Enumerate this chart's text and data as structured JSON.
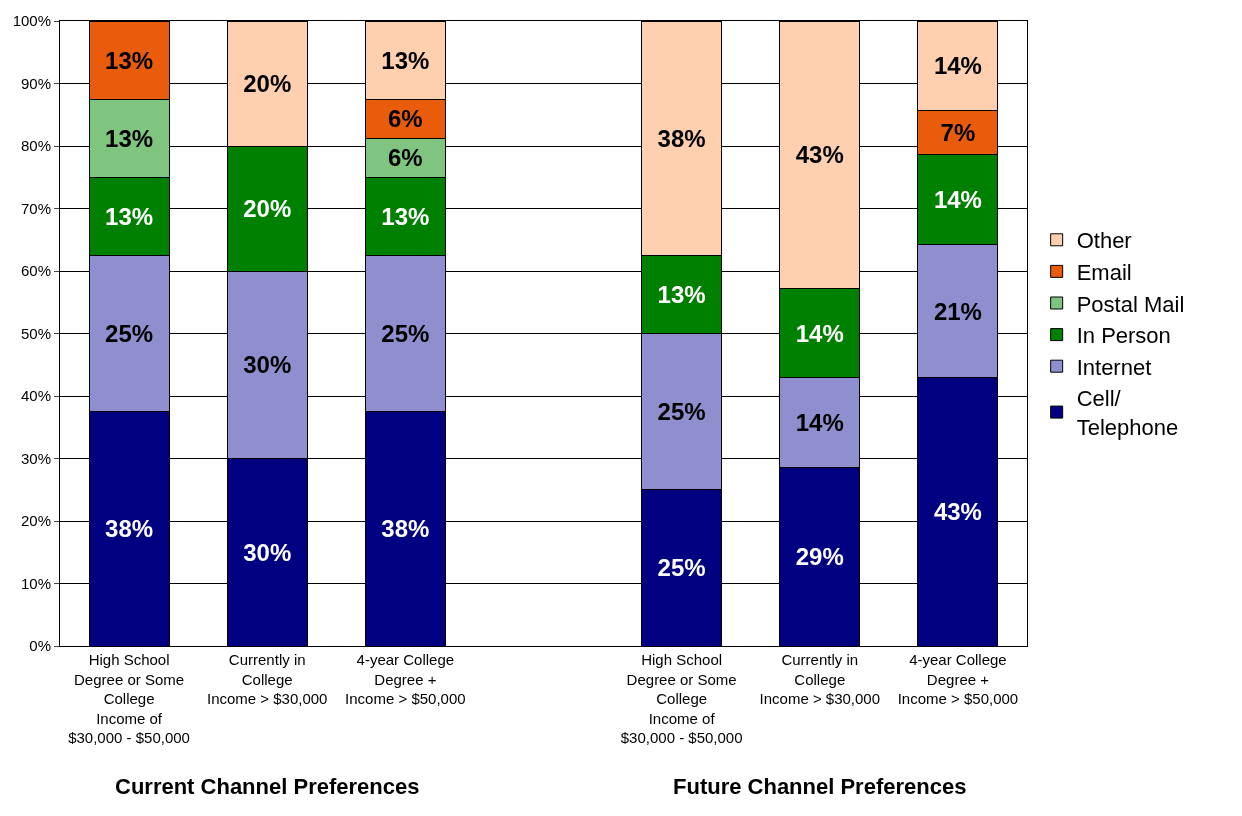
{
  "chart_data": {
    "type": "bar",
    "stacked": true,
    "categories": [
      "High School\nDegree or Some\nCollege\nIncome of\n$30,000 - $50,000",
      "Currently in\nCollege\nIncome > $30,000",
      "4-year College\nDegree +\nIncome > $50,000",
      null,
      "High School\nDegree or Some\nCollege\nIncome of\n$30,000 - $50,000",
      "Currently in\nCollege\nIncome > $30,000",
      "4-year College\nDegree +\nIncome > $50,000"
    ],
    "series": [
      {
        "name": "Cell/\nTelephone",
        "color": "#000080",
        "values": [
          37.5,
          30,
          37.5,
          null,
          25,
          28.6,
          42.9
        ],
        "value_labels": [
          "38%",
          "30%",
          "38%",
          null,
          "25%",
          "29%",
          "43%"
        ]
      },
      {
        "name": "Internet",
        "color": "#8f8fd0",
        "values": [
          25,
          30,
          25,
          null,
          25,
          14.3,
          21.4
        ],
        "value_labels": [
          "25%",
          "30%",
          "25%",
          null,
          "25%",
          "14%",
          "21%"
        ]
      },
      {
        "name": "In Person",
        "color": "#008000",
        "values": [
          12.5,
          20,
          12.5,
          null,
          12.5,
          14.3,
          14.3
        ],
        "value_labels": [
          "13%",
          "20%",
          "13%",
          null,
          "13%",
          "14%",
          "14%"
        ]
      },
      {
        "name": "Postal Mail",
        "color": "#7fc47f",
        "values": [
          12.5,
          null,
          6.25,
          null,
          null,
          null,
          null
        ],
        "value_labels": [
          "13%",
          null,
          "6%",
          null,
          null,
          null,
          null
        ]
      },
      {
        "name": "Email",
        "color": "#e85c0c",
        "values": [
          12.5,
          null,
          6.25,
          null,
          null,
          null,
          7.1
        ],
        "value_labels": [
          "13%",
          null,
          "6%",
          null,
          null,
          null,
          "7%"
        ]
      },
      {
        "name": "Other",
        "color": "#ffd0b0",
        "values": [
          null,
          20,
          12.5,
          null,
          37.5,
          42.8,
          14.3
        ],
        "value_labels": [
          null,
          "20%",
          "13%",
          null,
          "38%",
          "43%",
          "14%"
        ]
      }
    ],
    "ylim": [
      0,
      100
    ],
    "yticks": [
      {
        "value": 0,
        "label": "0%"
      },
      {
        "value": 10,
        "label": "10%"
      },
      {
        "value": 20,
        "label": "20%"
      },
      {
        "value": 30,
        "label": "30%"
      },
      {
        "value": 40,
        "label": "40%"
      },
      {
        "value": 50,
        "label": "50%"
      },
      {
        "value": 60,
        "label": "60%"
      },
      {
        "value": 70,
        "label": "70%"
      },
      {
        "value": 80,
        "label": "80%"
      },
      {
        "value": 90,
        "label": "90%"
      },
      {
        "value": 100,
        "label": "100%"
      }
    ],
    "grid": "y",
    "legend": "right",
    "annotations": [
      "Current Channel Preferences",
      "Future Channel Preferences"
    ]
  }
}
